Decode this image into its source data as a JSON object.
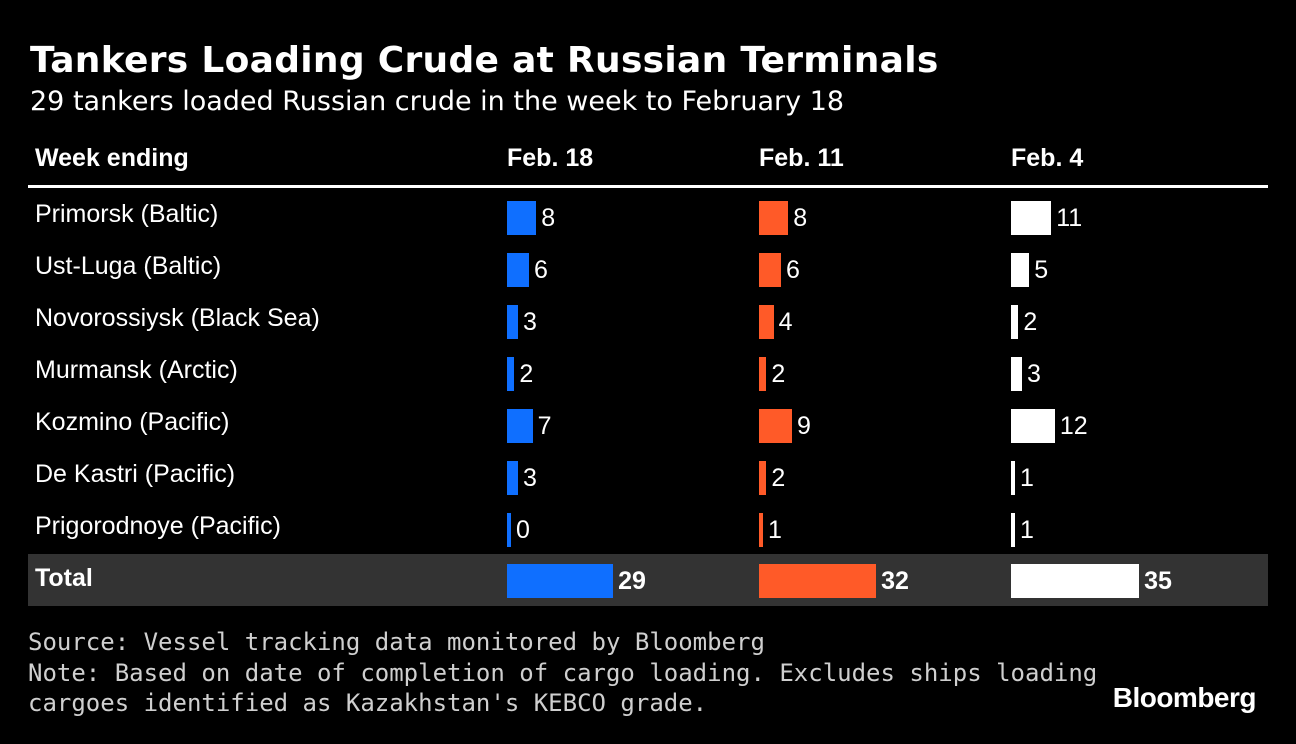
{
  "chart_data": {
    "type": "table",
    "title": "Tankers Loading Crude at Russian Terminals",
    "subtitle": "29 tankers loaded Russian crude in the week to February 18",
    "row_header": "Week ending",
    "columns": [
      "Feb. 18",
      "Feb. 11",
      "Feb. 4"
    ],
    "column_colors": [
      "#0f6fff",
      "#ff5a28",
      "#ffffff"
    ],
    "rows": [
      {
        "label": "Primorsk (Baltic)",
        "values": [
          8,
          8,
          11
        ]
      },
      {
        "label": "Ust-Luga (Baltic)",
        "values": [
          6,
          6,
          5
        ]
      },
      {
        "label": "Novorossiysk (Black Sea)",
        "values": [
          3,
          4,
          2
        ]
      },
      {
        "label": "Murmansk (Arctic)",
        "values": [
          2,
          2,
          3
        ]
      },
      {
        "label": "Kozmino (Pacific)",
        "values": [
          7,
          9,
          12
        ]
      },
      {
        "label": "De Kastri (Pacific)",
        "values": [
          3,
          2,
          1
        ]
      },
      {
        "label": "Prigorodnoye (Pacific)",
        "values": [
          0,
          1,
          1
        ]
      }
    ],
    "total": {
      "label": "Total",
      "values": [
        29,
        32,
        35
      ]
    }
  },
  "footer": {
    "source": "Source: Vessel tracking data monitored by Bloomberg",
    "note_line1": "Note: Based on date of completion of cargo loading. Excludes ships loading",
    "note_line2": "cargoes identified as Kazakhstan's KEBCO grade."
  },
  "brand": "Bloomberg",
  "colors": {
    "background": "#000000",
    "total_band": "#333333"
  }
}
